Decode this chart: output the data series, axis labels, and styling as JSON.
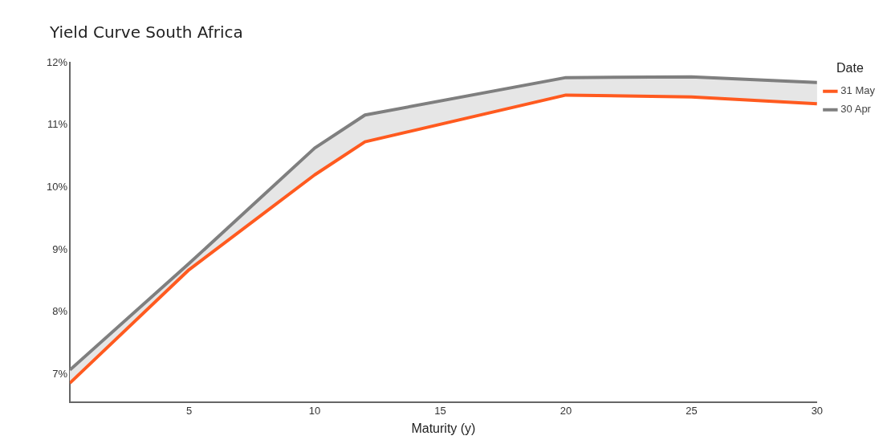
{
  "chart_data": {
    "type": "line",
    "title": "Yield Curve South Africa",
    "xlabel": "Maturity (y)",
    "x": [
      0.25,
      5,
      10,
      12,
      20,
      25,
      30
    ],
    "series": [
      {
        "name": "31 May",
        "color": "#ff5a1f",
        "values": [
          6.86,
          8.68,
          10.2,
          10.73,
          11.48,
          11.45,
          11.34
        ]
      },
      {
        "name": "30 Apr",
        "color": "#7f7f7f",
        "values": [
          7.07,
          8.78,
          10.63,
          11.16,
          11.76,
          11.77,
          11.68
        ],
        "lower": [
          6.86,
          8.68,
          10.2,
          10.73,
          11.48,
          11.45,
          11.34
        ],
        "upper": [
          7.07,
          8.78,
          10.63,
          11.16,
          11.76,
          11.77,
          11.68
        ]
      }
    ],
    "xlim": [
      0.25,
      30
    ],
    "xticks": [
      5,
      10,
      15,
      20,
      25,
      30
    ],
    "ylim": [
      6.55,
      12
    ],
    "yticks": [
      {
        "value": 7,
        "label": "7%"
      },
      {
        "value": 8,
        "label": "8%"
      },
      {
        "value": 9,
        "label": "9%"
      },
      {
        "value": 10,
        "label": "10%"
      },
      {
        "value": 11,
        "label": "11%"
      },
      {
        "value": 12,
        "label": "12%"
      }
    ],
    "legend": "right",
    "legend_title": "Date",
    "grid": false,
    "marker": "none",
    "line_style": "solid"
  }
}
